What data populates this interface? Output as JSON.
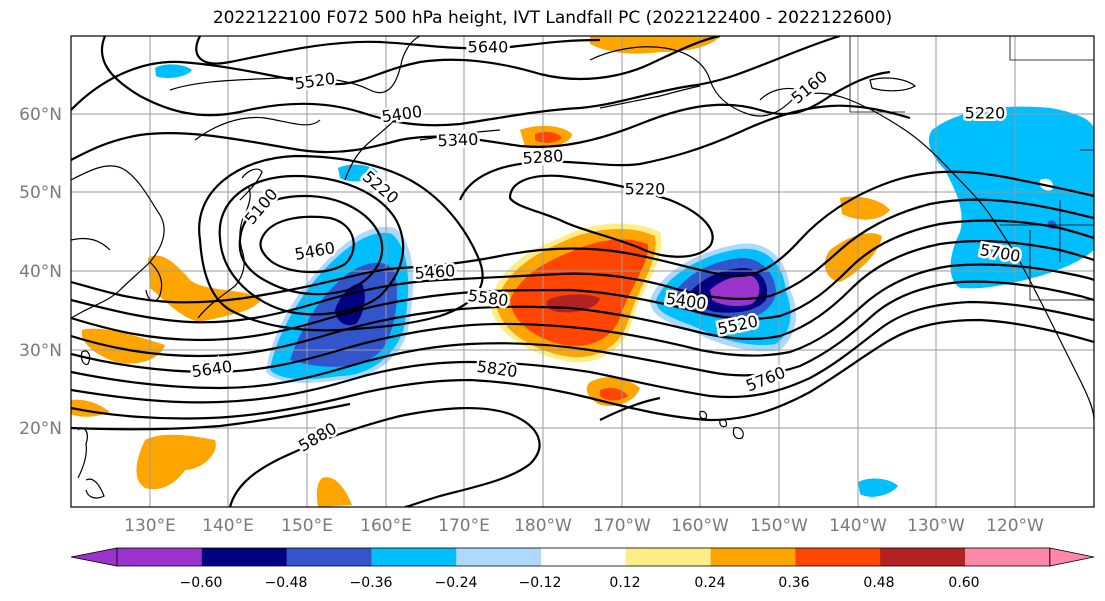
{
  "title": "2022122100 F072 500 hPa height, IVT Landfall PC (2022122400 - 2022122600)",
  "lat_labels": [
    "60°N",
    "50°N",
    "40°N",
    "30°N",
    "20°N"
  ],
  "lon_labels": [
    "130°E",
    "140°E",
    "150°E",
    "160°E",
    "170°E",
    "180°W",
    "170°W",
    "160°W",
    "150°W",
    "140°W",
    "130°W",
    "120°W"
  ],
  "contour_labels": [
    "5640",
    "5520",
    "5400",
    "5340",
    "5280",
    "5460",
    "5220",
    "5160",
    "5220",
    "5100",
    "5220",
    "5460",
    "5580",
    "5400",
    "5520",
    "5700",
    "5640",
    "5820",
    "5760",
    "5880"
  ],
  "colorbar": {
    "colors": [
      "#9933cc",
      "#000080",
      "#3355cc",
      "#00bfff",
      "#add8ff",
      "#ffffff",
      "#ffee88",
      "#ffa500",
      "#ff4500",
      "#b22222",
      "#ff88aa"
    ],
    "tick_labels": [
      "−0.60",
      "−0.48",
      "−0.36",
      "−0.24",
      "−0.12",
      "0.12",
      "0.24",
      "0.36",
      "0.48",
      "0.60"
    ]
  }
}
